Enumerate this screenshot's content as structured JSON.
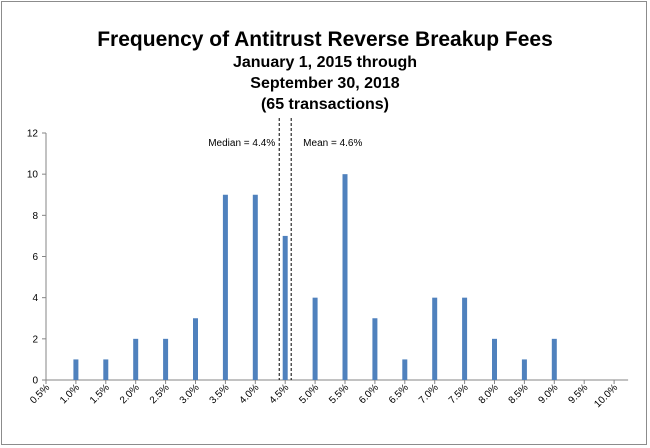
{
  "chart_data": {
    "type": "bar",
    "title": "Frequency of Antitrust Reverse Breakup Fees",
    "subtitle_lines": [
      "January 1, 2015 through",
      "September 30, 2018",
      "(65 transactions)"
    ],
    "categories": [
      "0.5%",
      "1.0%",
      "1.5%",
      "2.0%",
      "2.5%",
      "3.0%",
      "3.5%",
      "4.0%",
      "4.5%",
      "5.0%",
      "5.5%",
      "6.0%",
      "6.5%",
      "7.0%",
      "7.5%",
      "8.0%",
      "8.5%",
      "9.0%",
      "9.5%",
      "10.0%"
    ],
    "values": [
      0,
      1,
      1,
      2,
      2,
      3,
      9,
      9,
      7,
      4,
      10,
      3,
      1,
      4,
      4,
      2,
      1,
      2,
      0,
      0
    ],
    "y_ticks": [
      0,
      2,
      4,
      6,
      8,
      10,
      12
    ],
    "ylim": [
      0,
      12
    ],
    "xlabel": "",
    "ylabel": "",
    "grid": false,
    "bar_color": "#4f81bd",
    "annotations": [
      {
        "label": "Median = 4.4%",
        "value": 4.4
      },
      {
        "label": "Mean = 4.6%",
        "value": 4.6
      }
    ]
  }
}
